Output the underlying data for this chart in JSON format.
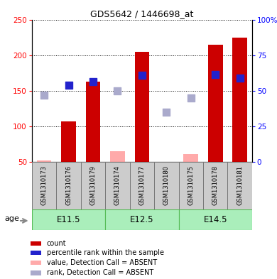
{
  "title": "GDS5642 / 1446698_at",
  "samples": [
    "GSM1310173",
    "GSM1310176",
    "GSM1310179",
    "GSM1310174",
    "GSM1310177",
    "GSM1310180",
    "GSM1310175",
    "GSM1310178",
    "GSM1310181"
  ],
  "groups": [
    {
      "label": "E11.5",
      "indices": [
        0,
        1,
        2
      ]
    },
    {
      "label": "E12.5",
      "indices": [
        3,
        4,
        5
      ]
    },
    {
      "label": "E14.5",
      "indices": [
        6,
        7,
        8
      ]
    }
  ],
  "count_values": [
    null,
    107,
    163,
    null,
    205,
    null,
    null,
    215,
    225
  ],
  "count_absent_values": [
    52,
    null,
    null,
    65,
    null,
    50,
    61,
    null,
    null
  ],
  "rank_values": [
    null,
    158,
    163,
    null,
    172,
    null,
    null,
    173,
    168
  ],
  "rank_absent_values": [
    144,
    null,
    null,
    150,
    null,
    120,
    140,
    null,
    null
  ],
  "ylim_left": [
    50,
    250
  ],
  "ylim_right": [
    0,
    100
  ],
  "yticks_left": [
    50,
    100,
    150,
    200,
    250
  ],
  "yticks_right": [
    0,
    25,
    50,
    75,
    100
  ],
  "ytick_labels_right": [
    "0",
    "25",
    "50",
    "75",
    "100%"
  ],
  "bar_color": "#cc0000",
  "bar_absent_color": "#ffaaaa",
  "rank_color": "#2222cc",
  "rank_absent_color": "#aaaacc",
  "group_bg_color": "#aaeebb",
  "group_border_color": "#55bb55",
  "sample_bg_color": "#cccccc",
  "sample_border_color": "#777777",
  "age_label": "age",
  "legend_items": [
    {
      "color": "#cc0000",
      "label": "count"
    },
    {
      "color": "#2222cc",
      "label": "percentile rank within the sample"
    },
    {
      "color": "#ffaaaa",
      "label": "value, Detection Call = ABSENT"
    },
    {
      "color": "#aaaacc",
      "label": "rank, Detection Call = ABSENT"
    }
  ],
  "bar_width": 0.6,
  "rank_marker_size": 55,
  "rank_absent_marker_size": 42
}
